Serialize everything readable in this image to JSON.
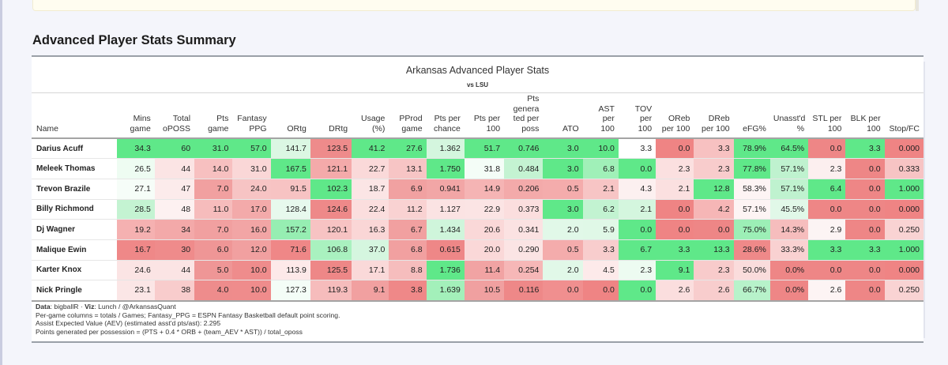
{
  "section_title": "Advanced Player Stats Summary",
  "table": {
    "title": "Arkansas Advanced Player Stats",
    "subtitle": "vs LSU",
    "columns": [
      [
        "Name"
      ],
      [
        "Mins",
        "game"
      ],
      [
        "Total",
        "oPOSS"
      ],
      [
        "Pts",
        "game"
      ],
      [
        "Fantasy",
        "PPG"
      ],
      [
        "ORtg"
      ],
      [
        "DRtg"
      ],
      [
        "Usage",
        "(%)"
      ],
      [
        "PProd",
        "game"
      ],
      [
        "Pts per",
        "chance"
      ],
      [
        "Pts per",
        "100"
      ],
      [
        "Pts",
        "genera",
        "ted per",
        "poss"
      ],
      [
        "ATO"
      ],
      [
        "AST per",
        "100"
      ],
      [
        "TOV per",
        "100"
      ],
      [
        "OReb",
        "per 100"
      ],
      [
        "DReb",
        "per 100"
      ],
      [
        "eFG%"
      ],
      [
        "Unasst'd",
        "%"
      ],
      [
        "STL per",
        "100"
      ],
      [
        "BLK per",
        "100"
      ],
      [
        "Stop/FC"
      ]
    ],
    "rows": [
      {
        "name": "Darius Acuff",
        "cells": [
          "34.3",
          "60",
          "31.0",
          "57.0",
          "141.7",
          "123.5",
          "41.2",
          "27.6",
          "1.362",
          "51.7",
          "0.746",
          "3.0",
          "10.0",
          "3.3",
          "0.0",
          "3.3",
          "78.9%",
          "64.5%",
          "0.0",
          "3.3",
          "0.000"
        ]
      },
      {
        "name": "Meleek Thomas",
        "cells": [
          "26.5",
          "44",
          "14.0",
          "31.0",
          "167.5",
          "121.1",
          "22.7",
          "13.1",
          "1.750",
          "31.8",
          "0.484",
          "3.0",
          "6.8",
          "0.0",
          "2.3",
          "2.3",
          "77.8%",
          "57.1%",
          "2.3",
          "0.0",
          "0.333"
        ]
      },
      {
        "name": "Trevon Brazile",
        "cells": [
          "27.1",
          "47",
          "7.0",
          "24.0",
          "91.5",
          "102.3",
          "18.7",
          "6.9",
          "0.941",
          "14.9",
          "0.206",
          "0.5",
          "2.1",
          "4.3",
          "2.1",
          "12.8",
          "58.3%",
          "57.1%",
          "6.4",
          "0.0",
          "1.000"
        ]
      },
      {
        "name": "Billy Richmond",
        "cells": [
          "28.5",
          "48",
          "11.0",
          "17.0",
          "128.4",
          "124.6",
          "22.4",
          "11.2",
          "1.127",
          "22.9",
          "0.373",
          "3.0",
          "6.2",
          "2.1",
          "0.0",
          "4.2",
          "57.1%",
          "45.5%",
          "0.0",
          "0.0",
          "0.000"
        ]
      },
      {
        "name": "Dj Wagner",
        "cells": [
          "19.2",
          "34",
          "7.0",
          "16.0",
          "157.2",
          "120.1",
          "16.3",
          "6.7",
          "1.434",
          "20.6",
          "0.341",
          "2.0",
          "5.9",
          "0.0",
          "0.0",
          "0.0",
          "75.0%",
          "14.3%",
          "2.9",
          "0.0",
          "0.250"
        ]
      },
      {
        "name": "Malique Ewin",
        "cells": [
          "16.7",
          "30",
          "6.0",
          "12.0",
          "71.6",
          "106.8",
          "37.0",
          "6.8",
          "0.615",
          "20.0",
          "0.290",
          "0.5",
          "3.3",
          "6.7",
          "3.3",
          "13.3",
          "28.6%",
          "33.3%",
          "3.3",
          "3.3",
          "1.000"
        ]
      },
      {
        "name": "Karter Knox",
        "cells": [
          "24.6",
          "44",
          "5.0",
          "10.0",
          "113.9",
          "125.5",
          "17.1",
          "8.8",
          "1.736",
          "11.4",
          "0.254",
          "2.0",
          "4.5",
          "2.3",
          "9.1",
          "2.3",
          "50.0%",
          "0.0%",
          "0.0",
          "0.0",
          "0.000"
        ]
      },
      {
        "name": "Nick Pringle",
        "cells": [
          "23.1",
          "38",
          "4.0",
          "10.0",
          "127.3",
          "119.3",
          "9.1",
          "3.8",
          "1.639",
          "10.5",
          "0.116",
          "0.0",
          "0.0",
          "0.0",
          "2.6",
          "2.6",
          "66.7%",
          "0.0%",
          "2.6",
          "0.0",
          "0.250"
        ]
      }
    ],
    "cell_colors": [
      [
        "#5fe889",
        "#5fe889",
        "#5fe889",
        "#5fe889",
        "#dbf7e3",
        "#ee8b8b",
        "#5fe889",
        "#5fe889",
        "#d4f6de",
        "#5fe889",
        "#5fe889",
        "#5fe889",
        "#5fe889",
        "#ffffff",
        "#ef8484",
        "#f7c1c1",
        "#5fe889",
        "#5fe889",
        "#ee8686",
        "#5fe889",
        "#ef8484"
      ],
      [
        "#eefcf2",
        "#fbe4e4",
        "#f7c0c0",
        "#fad7d7",
        "#5fe889",
        "#f4aaaa",
        "#fad9d9",
        "#f7c5c5",
        "#5fe889",
        "#f4fdf7",
        "#c4f3d2",
        "#5fe889",
        "#a0f0b8",
        "#5fe889",
        "#fbe0e0",
        "#f8cccc",
        "#5fe889",
        "#bff2cf",
        "#fcefef",
        "#ee8686",
        "#f7c4c4"
      ],
      [
        "#f6fdf8",
        "#fcebeb",
        "#f1a0a0",
        "#f7c4c4",
        "#f7c3c3",
        "#5fe889",
        "#fbe5e5",
        "#f1a1a1",
        "#f2a6a6",
        "#f5b4b4",
        "#f3aaaa",
        "#f4acac",
        "#f7c5c5",
        "#fcf0f0",
        "#fbe0e0",
        "#5fe889",
        "#fdf4f4",
        "#bff2cf",
        "#5fe889",
        "#ee8686",
        "#5fe889"
      ],
      [
        "#c4f3d2",
        "#fdf1f1",
        "#f6bcbc",
        "#f3aaaa",
        "#e7f9ed",
        "#ee8989",
        "#fbdede",
        "#f9d2d2",
        "#fbe3e3",
        "#fbe4e4",
        "#fbdede",
        "#5fe889",
        "#c2f3d1",
        "#d4f6de",
        "#ef8484",
        "#f6b6b6",
        "#fdf4f4",
        "#e1f8e8",
        "#ee8686",
        "#ee8686",
        "#ef8484"
      ],
      [
        "#f5b1b1",
        "#f3a9a9",
        "#f1a0a0",
        "#f2a5a5",
        "#96eeb2",
        "#f7c3c3",
        "#fad6d6",
        "#f1a0a0",
        "#cff5db",
        "#fad8d8",
        "#fbe2e2",
        "#e1f8e8",
        "#e0f8e7",
        "#5fe889",
        "#ef8484",
        "#ee8686",
        "#9cefb6",
        "#f6bdbd",
        "#fcf4f4",
        "#ee8686",
        "#f9d3d3"
      ],
      [
        "#ef8888",
        "#ef8b8b",
        "#ef9696",
        "#f1a0a0",
        "#ef8787",
        "#a9f1bf",
        "#d5f6df",
        "#f1a0a0",
        "#ee8787",
        "#fad8d8",
        "#fbe4e4",
        "#f4acac",
        "#f8cdcd",
        "#5fe889",
        "#5fe889",
        "#5fe889",
        "#ef8989",
        "#f9d1d1",
        "#5fe889",
        "#5fe889",
        "#5fe889"
      ],
      [
        "#fbe4e4",
        "#fbe4e4",
        "#ef9696",
        "#ef8c8c",
        "#fde9e9",
        "#ee8787",
        "#fad9d9",
        "#f6bdbd",
        "#5fe889",
        "#f1a3a3",
        "#f6b7b7",
        "#e1f8e8",
        "#fdeaea",
        "#edfbf1",
        "#5fe889",
        "#f8cbcb",
        "#fadcdc",
        "#ee8686",
        "#ee8686",
        "#ee8686",
        "#ef8484"
      ],
      [
        "#fbe6e6",
        "#f8cccc",
        "#ee8c8c",
        "#ef8c8c",
        "#f4fdf7",
        "#f6bcbc",
        "#f1a0a0",
        "#ef8888",
        "#a3f0ba",
        "#f0a0a0",
        "#ee8888",
        "#f08f8f",
        "#ef8484",
        "#5fe889",
        "#fbdede",
        "#f8cdcd",
        "#b7f2ca",
        "#ee8686",
        "#fdf4f4",
        "#ee8686",
        "#f9d3d3"
      ]
    ]
  },
  "footnotes": {
    "data_label": "Data",
    "data_value": ": bigballR · ",
    "viz_label": "Viz",
    "viz_value": ": Lunch / @ArkansasQuant",
    "line2": "Per-game columns = totals / Games; Fantasy_PPG = ESPN Fantasy Basketball default point scoring.",
    "line3": "Assist Expected Value (AEV) (estimated asst'd pts/ast): 2.295",
    "line4": "Points generated per possession = (PTS + 0.4 * ORB + (team_AEV * AST)) / total_oposs"
  }
}
